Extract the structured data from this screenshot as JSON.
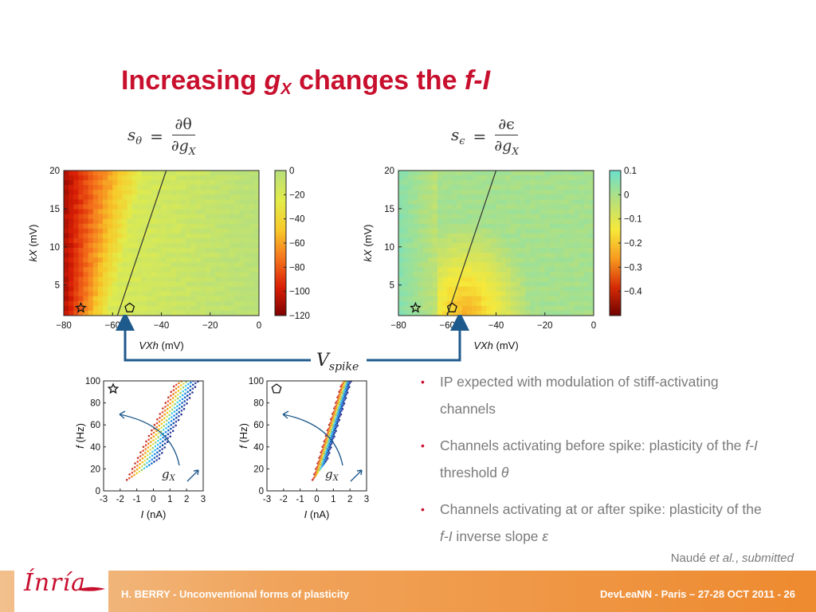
{
  "title": {
    "prefix": "Increasing ",
    "g": "g",
    "sub": "X",
    "middle": " changes the ",
    "fi": "f-I"
  },
  "formulas": {
    "left": {
      "lhs": "s",
      "lhs_sub": "θ",
      "num": "∂θ",
      "den": "∂g",
      "den_sub": "X"
    },
    "right": {
      "lhs": "s",
      "lhs_sub": "ϵ",
      "num": "∂ϵ",
      "den": "∂g",
      "den_sub": "X"
    }
  },
  "vspike": {
    "v": "V",
    "sub": "spike"
  },
  "gx_label": {
    "g": "g",
    "sub": "X"
  },
  "chart_data": [
    {
      "type": "heatmap",
      "name": "s_theta",
      "xlabel_italic": "VXh",
      "xlabel_unit": " (mV)",
      "ylabel_italic": "kX",
      "ylabel_unit": " (mV)",
      "x_ticks": [
        "−80",
        "−60",
        "−40",
        "−20",
        "0"
      ],
      "y_ticks": [
        "5",
        "10",
        "15",
        "20"
      ],
      "xlim": [
        -80,
        0
      ],
      "ylim": [
        1,
        20
      ],
      "colorbar_ticks": [
        "0",
        "−20",
        "−40",
        "−60",
        "−80",
        "−100",
        "−120"
      ],
      "colorbar_range": [
        -120,
        0
      ],
      "colors": [
        "#7a0000",
        "#d81e05",
        "#f5731c",
        "#f7c92a",
        "#e3ec4a",
        "#b8e07a"
      ],
      "markers": [
        {
          "shape": "star",
          "x": -73,
          "y": 2
        },
        {
          "shape": "pentagon",
          "x": -53,
          "y": 2
        }
      ],
      "line": {
        "x": [
          -58,
          -38
        ],
        "y": [
          1,
          20
        ]
      }
    },
    {
      "type": "heatmap",
      "name": "s_epsilon",
      "xlabel_italic": "VXh",
      "xlabel_unit": " (mV)",
      "ylabel_italic": "kX",
      "ylabel_unit": " (mV)",
      "x_ticks": [
        "−80",
        "−60",
        "−40",
        "−20",
        "0"
      ],
      "y_ticks": [
        "5",
        "10",
        "15",
        "20"
      ],
      "xlim": [
        -80,
        0
      ],
      "ylim": [
        1,
        20
      ],
      "colorbar_ticks": [
        "0.1",
        "0",
        "−0.1",
        "−0.2",
        "−0.3",
        "−0.4"
      ],
      "colorbar_range": [
        -0.5,
        0.1
      ],
      "colors": [
        "#6b0000",
        "#d42a05",
        "#f79a1f",
        "#f6e93a",
        "#b8e07a",
        "#6fe0c9"
      ],
      "markers": [
        {
          "shape": "star",
          "x": -73,
          "y": 2
        },
        {
          "shape": "pentagon",
          "x": -58,
          "y": 2
        }
      ],
      "line": {
        "x": [
          -60,
          -40
        ],
        "y": [
          1,
          20
        ]
      }
    },
    {
      "type": "scatter",
      "name": "fi_star",
      "xlabel_italic": "I",
      "xlabel_unit": " (nA)",
      "ylabel_italic": "f",
      "ylabel_unit": " (Hz)",
      "x_ticks": [
        "-3",
        "-2",
        "-1",
        "0",
        "1",
        "2",
        "3"
      ],
      "y_ticks": [
        "0",
        "20",
        "40",
        "60",
        "80",
        "100"
      ],
      "xlim": [
        -3,
        3
      ],
      "ylim": [
        0,
        100
      ],
      "marker": "star",
      "curve_offsets": [
        -1.6,
        -1.45,
        -1.3,
        -1.15,
        -1.0,
        -0.85,
        -0.7,
        -0.55,
        -0.4,
        -0.25,
        -0.1,
        0.05,
        0.2,
        0.35
      ],
      "slope": 30,
      "start_x": -1.6,
      "colors": [
        "#c0392b",
        "#e74c3c",
        "#e67e22",
        "#f39c12",
        "#f1c40f",
        "#d4e157",
        "#9ccc65",
        "#4dd0e1",
        "#29b6f6",
        "#1e88e5",
        "#1565c0",
        "#0d47a1",
        "#3949ab",
        "#283593"
      ]
    },
    {
      "type": "scatter",
      "name": "fi_pentagon",
      "xlabel_italic": "I",
      "xlabel_unit": " (nA)",
      "ylabel_italic": "f",
      "ylabel_unit": " (Hz)",
      "x_ticks": [
        "-3",
        "-2",
        "-1",
        "0",
        "1",
        "2",
        "3"
      ],
      "y_ticks": [
        "0",
        "20",
        "40",
        "60",
        "80",
        "100"
      ],
      "xlim": [
        -3,
        3
      ],
      "ylim": [
        0,
        100
      ],
      "marker": "pentagon",
      "curve_offsets": [
        -0.35,
        -0.28,
        -0.21,
        -0.14,
        -0.07,
        0.0,
        0.07,
        0.14,
        0.21,
        0.28,
        0.35,
        0.42,
        0.49,
        0.56
      ],
      "slope": 50,
      "start_x": 0.3,
      "colors": [
        "#c0392b",
        "#e74c3c",
        "#e67e22",
        "#f39c12",
        "#f1c40f",
        "#d4e157",
        "#9ccc65",
        "#4dd0e1",
        "#29b6f6",
        "#1e88e5",
        "#1565c0",
        "#0d47a1",
        "#3949ab",
        "#283593"
      ]
    }
  ],
  "bullets": [
    {
      "parts": [
        {
          "t": "IP expected with modulation of stiff-activating channels",
          "i": false
        }
      ]
    },
    {
      "parts": [
        {
          "t": "Channels activating before spike: plasticity of the ",
          "i": false
        },
        {
          "t": "f-I",
          "i": true
        },
        {
          "t": " threshold ",
          "i": false
        },
        {
          "t": "θ",
          "i": true
        }
      ]
    },
    {
      "parts": [
        {
          "t": "Channels activating at or after spike: plasticity of the ",
          "i": false
        },
        {
          "t": "f-I",
          "i": true
        },
        {
          "t": " inverse slope ",
          "i": false
        },
        {
          "t": "ε",
          "i": true
        }
      ]
    }
  ],
  "citation": {
    "author": "Naudé ",
    "etal": "et al.",
    "comma": ", ",
    "status": "submitted"
  },
  "footer": {
    "left": "H. BERRY - Unconventional forms of plasticity",
    "right": "DevLeaNN - Paris – 27-28 OCT 2011 - 26",
    "logo": "Ínría"
  },
  "accent_color": "#c8102e",
  "arrow_color": "#1f5a8c"
}
